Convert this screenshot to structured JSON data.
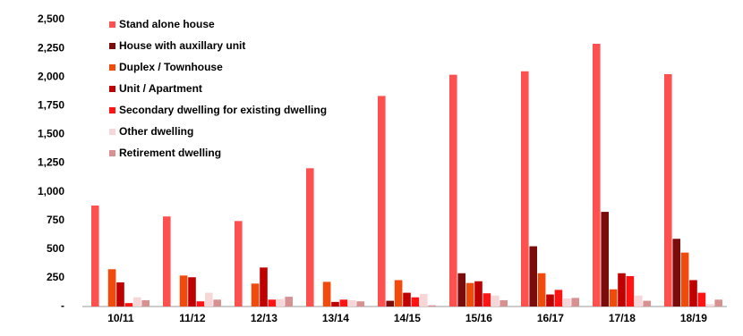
{
  "chart_data": {
    "type": "bar",
    "categories": [
      "10/11",
      "11/12",
      "12/13",
      "13/14",
      "14/15",
      "15/16",
      "16/17",
      "17/18",
      "18/19"
    ],
    "series": [
      {
        "name": "Stand alone house",
        "color": "#ff5050",
        "values": [
          880,
          785,
          745,
          1205,
          1835,
          2020,
          2050,
          2290,
          2025
        ]
      },
      {
        "name": "House with auxillary unit",
        "color": "#7b0c0c",
        "values": [
          0,
          0,
          0,
          0,
          50,
          290,
          525,
          825,
          590
        ]
      },
      {
        "name": "Duplex / Townhouse",
        "color": "#f34a0c",
        "values": [
          325,
          270,
          200,
          215,
          230,
          205,
          290,
          150,
          470
        ]
      },
      {
        "name": "Unit / Apartment",
        "color": "#c00000",
        "values": [
          210,
          255,
          340,
          40,
          120,
          220,
          105,
          290,
          230
        ]
      },
      {
        "name": "Secondary dwelling for existing dwelling",
        "color": "#ff1414",
        "values": [
          30,
          45,
          60,
          60,
          80,
          115,
          145,
          265,
          120
        ]
      },
      {
        "name": "Other dwelling",
        "color": "#f6d6d6",
        "values": [
          80,
          120,
          65,
          55,
          110,
          95,
          70,
          95,
          20
        ]
      },
      {
        "name": "Retirement dwelling",
        "color": "#d99090",
        "values": [
          55,
          60,
          85,
          45,
          10,
          55,
          75,
          50,
          60
        ]
      }
    ],
    "ylim": [
      0,
      2500
    ],
    "yticks": [
      {
        "value": 0,
        "label": "-"
      },
      250,
      500,
      750,
      {
        "value": 1000,
        "label": "1,000"
      },
      {
        "value": 1250,
        "label": "1,250"
      },
      {
        "value": 1500,
        "label": "1,500"
      },
      {
        "value": 1750,
        "label": "1,750"
      },
      {
        "value": 2000,
        "label": "2,000"
      },
      {
        "value": 2250,
        "label": "2,250"
      },
      {
        "value": 2500,
        "label": "2,500"
      }
    ],
    "grid": false
  }
}
